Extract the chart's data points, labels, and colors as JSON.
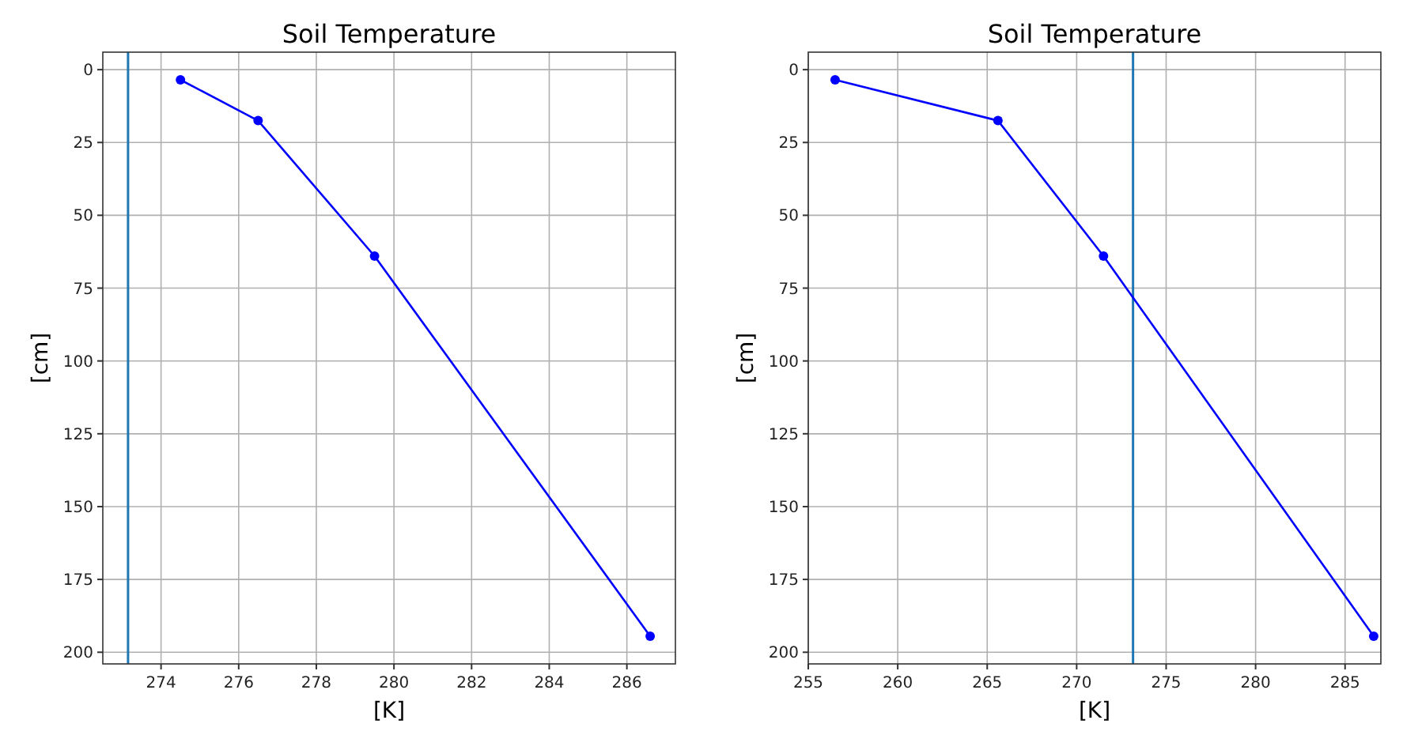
{
  "chart_data": [
    {
      "type": "line",
      "title": "Soil Temperature",
      "xlabel": "[K]",
      "ylabel": "[cm]",
      "x": [
        274.5,
        276.5,
        279.5,
        286.6
      ],
      "series": [
        {
          "color": "#0000ff",
          "values": [
            3.5,
            17.5,
            64,
            194.5
          ]
        }
      ],
      "marker": "circle",
      "line_style": "solid",
      "grid": true,
      "xlim": [
        272.5,
        287.25
      ],
      "xticks": [
        274,
        276,
        278,
        280,
        282,
        284,
        286
      ],
      "ylim": [
        204,
        -6
      ],
      "yticks": [
        0,
        25,
        50,
        75,
        100,
        125,
        150,
        175,
        200
      ],
      "ref_lines": [
        {
          "axis": "x",
          "value": 273.15,
          "color": "#1f77b4"
        }
      ]
    },
    {
      "type": "line",
      "title": "Soil Temperature",
      "xlabel": "[K]",
      "ylabel": "[cm]",
      "x": [
        256.5,
        265.6,
        271.5,
        286.6
      ],
      "series": [
        {
          "color": "#0000ff",
          "values": [
            3.5,
            17.5,
            64,
            194.5
          ]
        }
      ],
      "marker": "circle",
      "line_style": "solid",
      "grid": true,
      "xlim": [
        255,
        287
      ],
      "xticks": [
        255,
        260,
        265,
        270,
        275,
        280,
        285
      ],
      "ylim": [
        204,
        -6
      ],
      "yticks": [
        0,
        25,
        50,
        75,
        100,
        125,
        150,
        175,
        200
      ],
      "ref_lines": [
        {
          "axis": "x",
          "value": 273.15,
          "color": "#1f77b4"
        }
      ]
    }
  ]
}
